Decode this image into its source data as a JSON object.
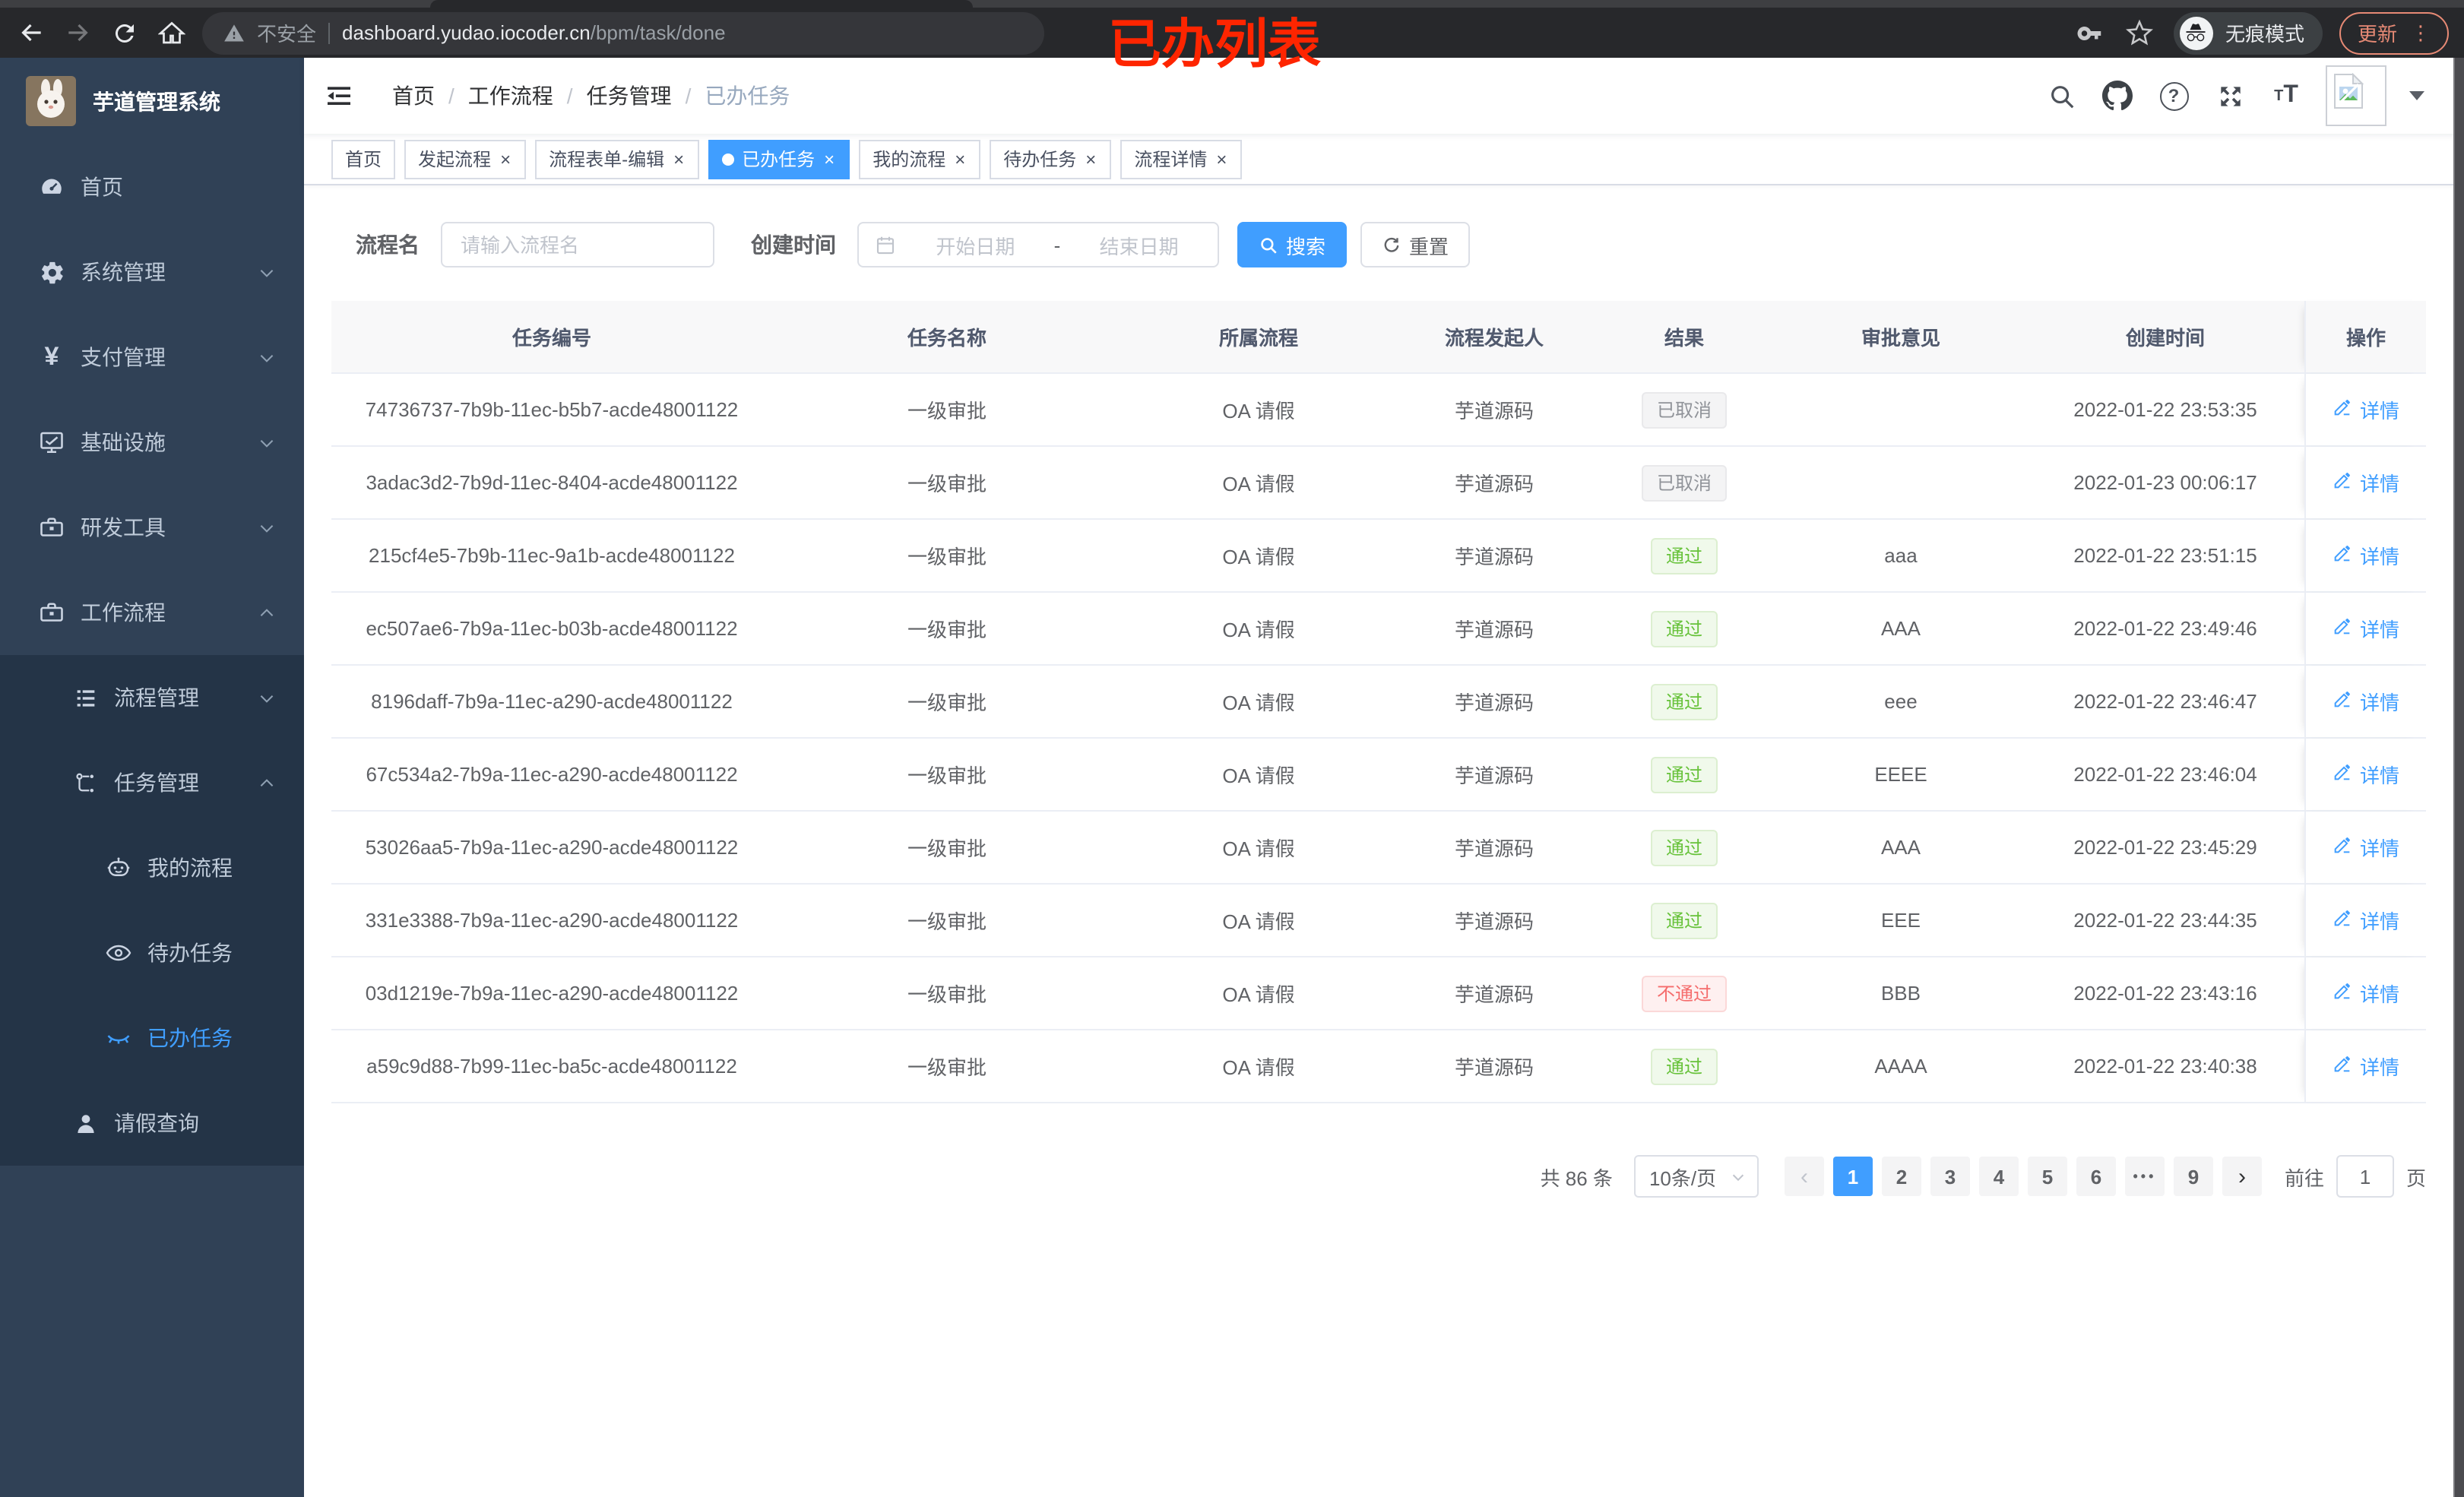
{
  "browser": {
    "insecure_label": "不安全",
    "url_host": "dashboard.yudao.iocoder.cn",
    "url_path": "/bpm/task/done",
    "incognito_label": "无痕模式",
    "update_label": "更新",
    "annotation": "已办列表"
  },
  "sidebar": {
    "title": "芋道管理系统",
    "menu": [
      {
        "label": "首页",
        "icon": "dashboard-icon",
        "level": 1,
        "group": false
      },
      {
        "label": "系统管理",
        "icon": "gear-icon",
        "level": 1,
        "group": true,
        "expanded": false
      },
      {
        "label": "支付管理",
        "icon": "yen-icon",
        "level": 1,
        "group": true,
        "expanded": false
      },
      {
        "label": "基础设施",
        "icon": "monitor-icon",
        "level": 1,
        "group": true,
        "expanded": false
      },
      {
        "label": "研发工具",
        "icon": "toolbox-icon",
        "level": 1,
        "group": true,
        "expanded": false
      },
      {
        "label": "工作流程",
        "icon": "briefcase-icon",
        "level": 1,
        "group": true,
        "expanded": true
      },
      {
        "label": "流程管理",
        "icon": "list-icon",
        "level": 2,
        "group": true,
        "expanded": false,
        "sub": true
      },
      {
        "label": "任务管理",
        "icon": "flow-icon",
        "level": 2,
        "group": true,
        "expanded": true,
        "sub": true
      },
      {
        "label": "我的流程",
        "icon": "robot-icon",
        "level": 3,
        "group": false,
        "sub": true
      },
      {
        "label": "待办任务",
        "icon": "eye-icon",
        "level": 3,
        "group": false,
        "sub": true
      },
      {
        "label": "已办任务",
        "icon": "eye-closed-icon",
        "level": 3,
        "group": false,
        "sub": true,
        "active": true
      },
      {
        "label": "请假查询",
        "icon": "user-icon",
        "level": 2,
        "group": false,
        "sub": true
      }
    ]
  },
  "breadcrumb": [
    {
      "label": "首页",
      "current": false
    },
    {
      "label": "工作流程",
      "current": false
    },
    {
      "label": "任务管理",
      "current": false
    },
    {
      "label": "已办任务",
      "current": true
    }
  ],
  "tags": [
    {
      "label": "首页",
      "closable": false,
      "active": false
    },
    {
      "label": "发起流程",
      "closable": true,
      "active": false
    },
    {
      "label": "流程表单-编辑",
      "closable": true,
      "active": false
    },
    {
      "label": "已办任务",
      "closable": true,
      "active": true
    },
    {
      "label": "我的流程",
      "closable": true,
      "active": false
    },
    {
      "label": "待办任务",
      "closable": true,
      "active": false
    },
    {
      "label": "流程详情",
      "closable": true,
      "active": false
    }
  ],
  "filters": {
    "name_label": "流程名",
    "name_placeholder": "请输入流程名",
    "time_label": "创建时间",
    "start_placeholder": "开始日期",
    "range_separator": "-",
    "end_placeholder": "结束日期",
    "search_label": "搜索",
    "reset_label": "重置"
  },
  "table": {
    "columns": [
      "任务编号",
      "任务名称",
      "所属流程",
      "流程发起人",
      "结果",
      "审批意见",
      "创建时间",
      "操作"
    ],
    "action_label": "详情",
    "rows": [
      {
        "id": "74736737-7b9b-11ec-b5b7-acde48001122",
        "name": "一级审批",
        "process": "OA 请假",
        "starter": "芋道源码",
        "result": "已取消",
        "result_type": "info",
        "comment": "",
        "created": "2022-01-22 23:53:35"
      },
      {
        "id": "3adac3d2-7b9d-11ec-8404-acde48001122",
        "name": "一级审批",
        "process": "OA 请假",
        "starter": "芋道源码",
        "result": "已取消",
        "result_type": "info",
        "comment": "",
        "created": "2022-01-23 00:06:17"
      },
      {
        "id": "215cf4e5-7b9b-11ec-9a1b-acde48001122",
        "name": "一级审批",
        "process": "OA 请假",
        "starter": "芋道源码",
        "result": "通过",
        "result_type": "success",
        "comment": "aaa",
        "created": "2022-01-22 23:51:15"
      },
      {
        "id": "ec507ae6-7b9a-11ec-b03b-acde48001122",
        "name": "一级审批",
        "process": "OA 请假",
        "starter": "芋道源码",
        "result": "通过",
        "result_type": "success",
        "comment": "AAA",
        "created": "2022-01-22 23:49:46"
      },
      {
        "id": "8196daff-7b9a-11ec-a290-acde48001122",
        "name": "一级审批",
        "process": "OA 请假",
        "starter": "芋道源码",
        "result": "通过",
        "result_type": "success",
        "comment": "eee",
        "created": "2022-01-22 23:46:47"
      },
      {
        "id": "67c534a2-7b9a-11ec-a290-acde48001122",
        "name": "一级审批",
        "process": "OA 请假",
        "starter": "芋道源码",
        "result": "通过",
        "result_type": "success",
        "comment": "EEEE",
        "created": "2022-01-22 23:46:04"
      },
      {
        "id": "53026aa5-7b9a-11ec-a290-acde48001122",
        "name": "一级审批",
        "process": "OA 请假",
        "starter": "芋道源码",
        "result": "通过",
        "result_type": "success",
        "comment": "AAA",
        "created": "2022-01-22 23:45:29"
      },
      {
        "id": "331e3388-7b9a-11ec-a290-acde48001122",
        "name": "一级审批",
        "process": "OA 请假",
        "starter": "芋道源码",
        "result": "通过",
        "result_type": "success",
        "comment": "EEE",
        "created": "2022-01-22 23:44:35"
      },
      {
        "id": "03d1219e-7b9a-11ec-a290-acde48001122",
        "name": "一级审批",
        "process": "OA 请假",
        "starter": "芋道源码",
        "result": "不通过",
        "result_type": "danger",
        "comment": "BBB",
        "created": "2022-01-22 23:43:16"
      },
      {
        "id": "a59c9d88-7b99-11ec-ba5c-acde48001122",
        "name": "一级审批",
        "process": "OA 请假",
        "starter": "芋道源码",
        "result": "通过",
        "result_type": "success",
        "comment": "AAAA",
        "created": "2022-01-22 23:40:38"
      }
    ]
  },
  "pagination": {
    "total_label": "共 86 条",
    "page_size_label": "10条/页",
    "pages": [
      "1",
      "2",
      "3",
      "4",
      "5",
      "6",
      "...",
      "9"
    ],
    "active_page": "1",
    "prev_symbol": "‹",
    "next_symbol": "›",
    "jump_label": "前往",
    "jump_value": "1",
    "jump_unit": "页"
  },
  "colors": {
    "accent": "#409eff",
    "success": "#67c23a",
    "danger": "#f56c6c",
    "info": "#909399",
    "annotation_red": "#fe2500",
    "sidebar_bg": "#304156",
    "sidebar_sub_bg": "#243447"
  }
}
